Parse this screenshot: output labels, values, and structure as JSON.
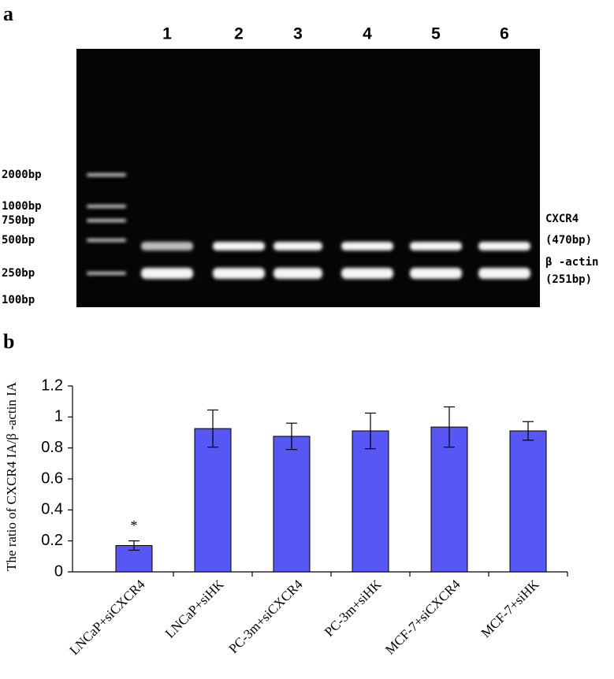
{
  "panel_labels": [
    "a",
    "b"
  ],
  "gel": {
    "lane_labels": [
      "1",
      "2",
      "3",
      "4",
      "5",
      "6"
    ],
    "marker_labels": [
      "2000bp",
      "1000bp",
      "750bp",
      "500bp",
      "250bp",
      "100bp"
    ],
    "band_labels": [
      "CXCR4",
      "(470bp)",
      "β -actin",
      "(251bp)"
    ]
  },
  "chart_data": {
    "type": "bar",
    "categories": [
      "LNCaP+siCXCR4",
      "LNCaP+siHK",
      "PC-3m+siCXCR4",
      "PC-3m+siHK",
      "MCF-7+siCXCR4",
      "MCF-7+siHK"
    ],
    "values": [
      0.17,
      0.925,
      0.875,
      0.91,
      0.935,
      0.91
    ],
    "errors": [
      0.03,
      0.12,
      0.085,
      0.115,
      0.13,
      0.06
    ],
    "color": "#5757f5",
    "ylabel": "The ratio of CXCR4 IA/β -actin IA",
    "ylim": [
      0,
      1.2
    ],
    "yticks": [
      0,
      0.2,
      0.4,
      0.6,
      0.8,
      1,
      1.2
    ],
    "annotation": "*"
  }
}
